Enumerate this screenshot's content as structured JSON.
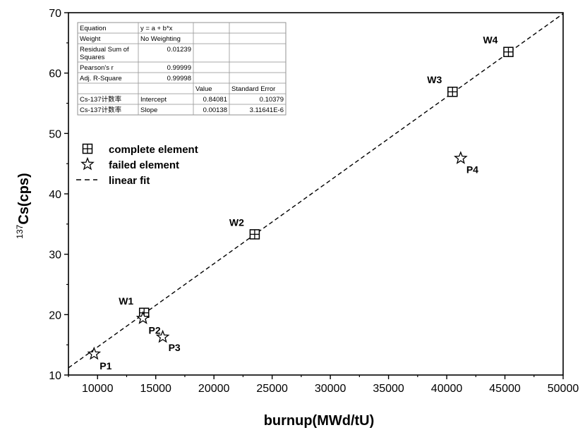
{
  "chart_data": {
    "type": "scatter",
    "xlabel": "burnup(MWd/tU)",
    "ylabel_sup": "137",
    "ylabel_main": "Cs(cps)",
    "xlim": [
      7500,
      50000
    ],
    "ylim": [
      10,
      70
    ],
    "xticks": [
      10000,
      15000,
      20000,
      25000,
      30000,
      35000,
      40000,
      45000,
      50000
    ],
    "yticks": [
      10,
      20,
      30,
      40,
      50,
      60,
      70
    ],
    "grid": false,
    "legend_position": "upper-left",
    "series": [
      {
        "name": "complete element",
        "marker": "square-plus",
        "points": [
          {
            "label": "W1",
            "x": 14000,
            "y": 20.3
          },
          {
            "label": "W2",
            "x": 23500,
            "y": 33.3
          },
          {
            "label": "W3",
            "x": 40500,
            "y": 56.9
          },
          {
            "label": "W4",
            "x": 45300,
            "y": 63.5
          }
        ]
      },
      {
        "name": "failed element",
        "marker": "star",
        "points": [
          {
            "label": "P1",
            "x": 9700,
            "y": 13.5
          },
          {
            "label": "P2",
            "x": 13900,
            "y": 19.4
          },
          {
            "label": "P3",
            "x": 15600,
            "y": 16.3
          },
          {
            "label": "P4",
            "x": 41200,
            "y": 45.9
          }
        ]
      }
    ],
    "fit": {
      "name": "linear fit",
      "intercept": 0.84081,
      "slope": 0.00138
    },
    "legend": [
      {
        "marker": "square-plus",
        "label": "complete element"
      },
      {
        "marker": "star",
        "label": "failed element"
      },
      {
        "marker": "dash",
        "label": "linear fit"
      }
    ],
    "stats_table": [
      [
        "Equation",
        "y = a + b*x",
        "",
        ""
      ],
      [
        "Weight",
        "No Weighting",
        "",
        ""
      ],
      [
        "Residual Sum of Squares",
        "0.01239",
        "",
        ""
      ],
      [
        "Pearson's r",
        "0.99999",
        "",
        ""
      ],
      [
        "Adj. R-Square",
        "0.99998",
        "",
        ""
      ],
      [
        "",
        "",
        "Value",
        "Standard Error"
      ],
      [
        "Cs-137计数率",
        "Intercept",
        "0.84081",
        "0.10379"
      ],
      [
        "Cs-137计数率",
        "Slope",
        "0.00138",
        "3.11641E-6"
      ]
    ]
  }
}
